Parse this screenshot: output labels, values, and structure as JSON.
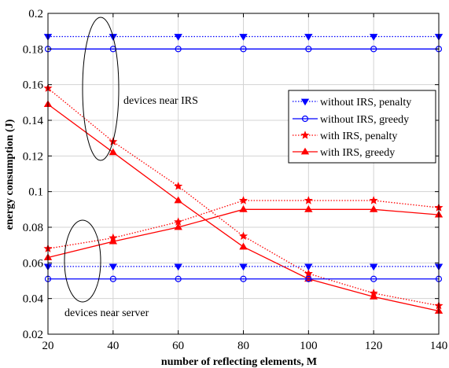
{
  "chart_data": {
    "type": "line",
    "title": "",
    "xlabel": "number of reflecting elements, M",
    "ylabel": "energy consumption (J)",
    "xlim": [
      20,
      140
    ],
    "ylim": [
      0.02,
      0.2
    ],
    "xticks": [
      20,
      40,
      60,
      80,
      100,
      120,
      140
    ],
    "yticks": [
      0.02,
      0.04,
      0.06,
      0.08,
      0.1,
      0.12,
      0.14,
      0.16,
      0.18,
      0.2
    ],
    "grid": true,
    "legend_position": "right",
    "x": [
      20,
      40,
      60,
      80,
      100,
      120,
      140
    ],
    "series": [
      {
        "name": "without IRS, penalty",
        "group": "devices near IRS",
        "color": "#0000ff",
        "style": "dotted",
        "marker": "triangle-down",
        "values": [
          0.187,
          0.187,
          0.187,
          0.187,
          0.187,
          0.187,
          0.187
        ]
      },
      {
        "name": "without IRS, greedy",
        "group": "devices near IRS",
        "color": "#0000ff",
        "style": "solid",
        "marker": "circle",
        "values": [
          0.18,
          0.18,
          0.18,
          0.18,
          0.18,
          0.18,
          0.18
        ]
      },
      {
        "name": "with IRS, penalty",
        "group": "devices near IRS",
        "color": "#ff0000",
        "style": "dotted",
        "marker": "star",
        "values": [
          0.158,
          0.128,
          0.103,
          0.075,
          0.054,
          0.043,
          0.036
        ]
      },
      {
        "name": "with IRS, greedy",
        "group": "devices near IRS",
        "color": "#ff0000",
        "style": "solid",
        "marker": "triangle-up",
        "values": [
          0.149,
          0.122,
          0.095,
          0.069,
          0.051,
          0.041,
          0.033
        ]
      },
      {
        "name": "without IRS, penalty",
        "group": "devices near server",
        "color": "#0000ff",
        "style": "dotted",
        "marker": "triangle-down",
        "values": [
          0.058,
          0.058,
          0.058,
          0.058,
          0.058,
          0.058,
          0.058
        ]
      },
      {
        "name": "without IRS, greedy",
        "group": "devices near server",
        "color": "#0000ff",
        "style": "solid",
        "marker": "circle",
        "values": [
          0.051,
          0.051,
          0.051,
          0.051,
          0.051,
          0.051,
          0.051
        ]
      },
      {
        "name": "with IRS, penalty",
        "group": "devices near server",
        "color": "#ff0000",
        "style": "dotted",
        "marker": "star",
        "values": [
          0.068,
          0.074,
          0.083,
          0.095,
          0.095,
          0.095,
          0.091
        ]
      },
      {
        "name": "with IRS, greedy",
        "group": "devices near server",
        "color": "#ff0000",
        "style": "solid",
        "marker": "triangle-up",
        "values": [
          0.063,
          0.072,
          0.08,
          0.09,
          0.09,
          0.09,
          0.087
        ]
      }
    ],
    "legend": [
      {
        "label": "without IRS, penalty",
        "color": "#0000ff",
        "style": "dotted",
        "marker": "triangle-down"
      },
      {
        "label": "without IRS, greedy",
        "color": "#0000ff",
        "style": "solid",
        "marker": "circle"
      },
      {
        "label": "with IRS, penalty",
        "color": "#ff0000",
        "style": "dotted",
        "marker": "star"
      },
      {
        "label": "with IRS, greedy",
        "color": "#ff0000",
        "style": "solid",
        "marker": "triangle-up"
      }
    ],
    "annotations": [
      {
        "text": "devices near IRS"
      },
      {
        "text": "devices near server"
      }
    ]
  }
}
